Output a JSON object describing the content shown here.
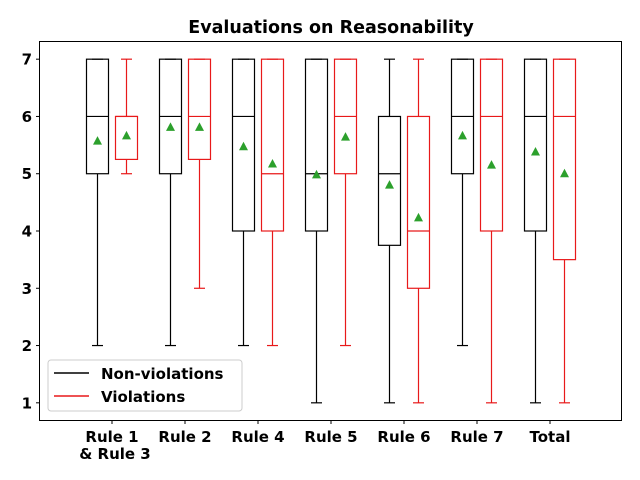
{
  "chart_data": {
    "type": "box",
    "title": "Evaluations on Reasonability",
    "xlabel": "",
    "ylabel": "",
    "ylim": [
      0.7,
      7.3
    ],
    "yticks": [
      1,
      2,
      3,
      4,
      5,
      6,
      7
    ],
    "categories": [
      {
        "lines": [
          "Rule 1",
          "& Rule 3"
        ]
      },
      {
        "lines": [
          "Rule 2"
        ]
      },
      {
        "lines": [
          "Rule 4"
        ]
      },
      {
        "lines": [
          "Rule 5"
        ]
      },
      {
        "lines": [
          "Rule 6"
        ]
      },
      {
        "lines": [
          "Rule 7"
        ]
      },
      {
        "lines": [
          "Total"
        ]
      }
    ],
    "legend": {
      "position": "lower-left"
    },
    "series": [
      {
        "name": "Non-violations",
        "color": "#000000",
        "boxes": [
          {
            "whisker_low": 2,
            "q1": 5,
            "median": 6,
            "q3": 7,
            "whisker_high": 7,
            "mean": 5.57
          },
          {
            "whisker_low": 2,
            "q1": 5,
            "median": 6,
            "q3": 7,
            "whisker_high": 7,
            "mean": 5.81
          },
          {
            "whisker_low": 2,
            "q1": 4,
            "median": 6,
            "q3": 7,
            "whisker_high": 7,
            "mean": 5.47
          },
          {
            "whisker_low": 1,
            "q1": 4,
            "median": 5,
            "q3": 7,
            "whisker_high": 7,
            "mean": 4.98
          },
          {
            "whisker_low": 1,
            "q1": 3.75,
            "median": 5,
            "q3": 6,
            "whisker_high": 7,
            "mean": 4.8
          },
          {
            "whisker_low": 2,
            "q1": 5,
            "median": 6,
            "q3": 7,
            "whisker_high": 7,
            "mean": 5.66
          },
          {
            "whisker_low": 1,
            "q1": 4,
            "median": 6,
            "q3": 7,
            "whisker_high": 7,
            "mean": 5.38
          }
        ]
      },
      {
        "name": "Violations",
        "color": "#e8191a",
        "boxes": [
          {
            "whisker_low": 5,
            "q1": 5.25,
            "median": 6,
            "q3": 6,
            "whisker_high": 7,
            "mean": 5.66
          },
          {
            "whisker_low": 3,
            "q1": 5.25,
            "median": 6,
            "q3": 7,
            "whisker_high": 7,
            "mean": 5.81
          },
          {
            "whisker_low": 2,
            "q1": 4,
            "median": 5,
            "q3": 7,
            "whisker_high": 7,
            "mean": 5.17
          },
          {
            "whisker_low": 2,
            "q1": 5,
            "median": 6,
            "q3": 7,
            "whisker_high": 7,
            "mean": 5.64
          },
          {
            "whisker_low": 1,
            "q1": 3,
            "median": 4,
            "q3": 6,
            "whisker_high": 7,
            "mean": 4.23
          },
          {
            "whisker_low": 1,
            "q1": 4,
            "median": 6,
            "q3": 7,
            "whisker_high": 7,
            "mean": 5.15
          },
          {
            "whisker_low": 1,
            "q1": 3.5,
            "median": 6,
            "q3": 7,
            "whisker_high": 7,
            "mean": 5.0
          }
        ]
      }
    ],
    "mean_marker_color": "#2ca02c"
  }
}
